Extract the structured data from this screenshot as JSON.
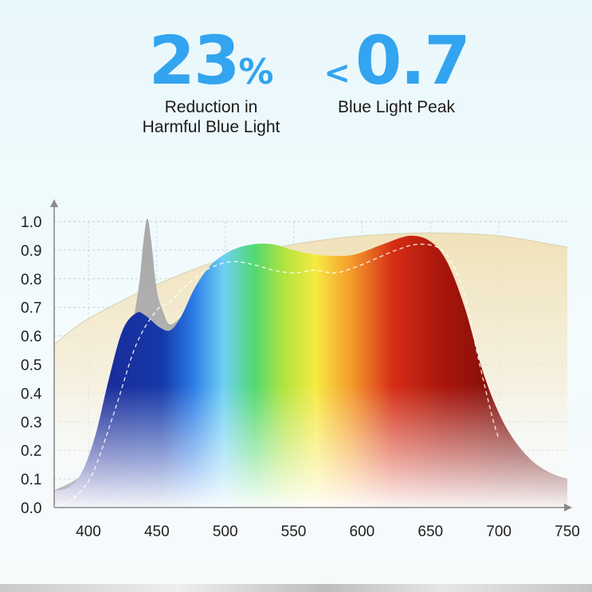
{
  "stats": [
    {
      "prefix": "",
      "number": "23",
      "unit": "%",
      "label_line1": "Reduction in",
      "label_line2": "Harmful Blue Light"
    },
    {
      "prefix": "<",
      "number": "0.7",
      "unit": "",
      "label_line1": "Blue Light Peak",
      "label_line2": ""
    }
  ],
  "colors": {
    "stat_blue": "#33a4ef",
    "sunlight_fill": "#f2e4bd",
    "reference_curve": "#9a9a9a",
    "dashed_curve": "#ffffff",
    "axis": "#8a8a8a"
  },
  "chart_data": {
    "type": "area",
    "title": "",
    "xlabel": "",
    "ylabel": "",
    "xlim": [
      375,
      750
    ],
    "ylim": [
      0,
      1.0
    ],
    "x_ticks": [
      400,
      450,
      500,
      550,
      600,
      650,
      700,
      750
    ],
    "y_ticks": [
      0.0,
      0.1,
      0.2,
      0.3,
      0.4,
      0.5,
      0.6,
      0.7,
      0.8,
      0.9,
      1.0
    ],
    "x_tick_labels": [
      "400",
      "450",
      "500",
      "550",
      "600",
      "650",
      "700",
      "750"
    ],
    "y_tick_labels": [
      "0.0",
      "0.1",
      "0.2",
      "0.3",
      "0.4",
      "0.5",
      "0.6",
      "0.7",
      "0.8",
      "0.9",
      "1.0"
    ],
    "grid": true,
    "series": [
      {
        "style": "sunlight-background",
        "x": [
          375,
          400,
          450,
          500,
          550,
          600,
          650,
          700,
          750
        ],
        "y": [
          0.57,
          0.66,
          0.78,
          0.87,
          0.92,
          0.95,
          0.96,
          0.95,
          0.91
        ]
      },
      {
        "style": "grey-reference-peak",
        "x": [
          375,
          400,
          420,
          430,
          437,
          440,
          443,
          446,
          450,
          455,
          460,
          470,
          480,
          490
        ],
        "y": [
          0.06,
          0.14,
          0.38,
          0.58,
          0.78,
          0.92,
          1.01,
          0.93,
          0.76,
          0.68,
          0.64,
          0.68,
          0.76,
          0.82
        ]
      },
      {
        "style": "spectrum-fill",
        "x": [
          375,
          385,
          395,
          405,
          415,
          425,
          435,
          442,
          452,
          460,
          468,
          478,
          490,
          505,
          520,
          535,
          550,
          565,
          580,
          595,
          615,
          635,
          650,
          662,
          675,
          688,
          700,
          712,
          725,
          738,
          750
        ],
        "y": [
          0.06,
          0.07,
          0.12,
          0.25,
          0.45,
          0.62,
          0.68,
          0.67,
          0.63,
          0.62,
          0.67,
          0.77,
          0.85,
          0.9,
          0.92,
          0.92,
          0.9,
          0.885,
          0.88,
          0.885,
          0.92,
          0.95,
          0.93,
          0.86,
          0.7,
          0.48,
          0.33,
          0.23,
          0.16,
          0.12,
          0.1
        ]
      },
      {
        "style": "dashed-outline",
        "x": [
          375,
          385,
          395,
          405,
          420,
          435,
          450,
          460,
          470,
          480,
          490,
          505,
          520,
          535,
          550,
          565,
          580,
          595,
          610,
          625,
          640,
          655,
          665,
          675,
          685,
          695,
          700
        ],
        "y": [
          0.0,
          0.02,
          0.06,
          0.14,
          0.35,
          0.57,
          0.69,
          0.72,
          0.77,
          0.81,
          0.84,
          0.86,
          0.85,
          0.83,
          0.82,
          0.83,
          0.82,
          0.84,
          0.87,
          0.9,
          0.92,
          0.91,
          0.86,
          0.74,
          0.52,
          0.32,
          0.24
        ]
      }
    ]
  }
}
